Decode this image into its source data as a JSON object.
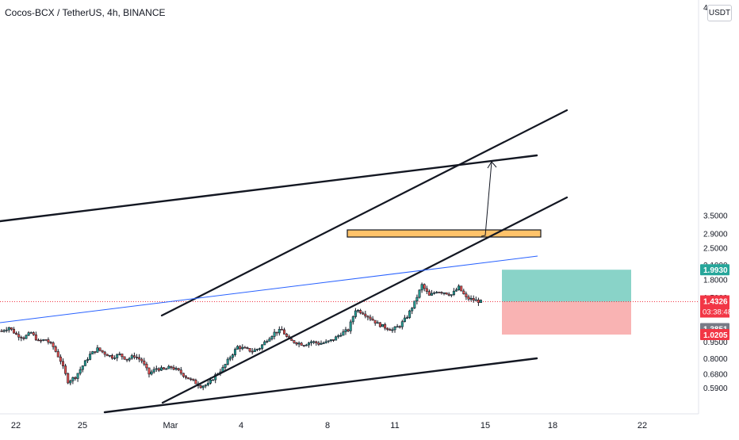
{
  "header": {
    "symbol_line": "Cocos-BCX / TetherUS, 4h, BINANCE",
    "currency": "USDT"
  },
  "price_axis": {
    "top_tick": "4",
    "ticks": [
      "3.5000",
      "2.9000",
      "2.5000",
      "2.1000",
      "1.8000",
      "1.5000",
      "1.1000",
      "0.9500",
      "0.8000",
      "0.6800",
      "0.5900"
    ],
    "target_badge": "1.9930",
    "current_price": "1.4326",
    "countdown": "03:38:48",
    "line_value": "1.3851",
    "stop_badge": "1.0205"
  },
  "time_axis": {
    "ticks": [
      "22",
      "25",
      "Mar",
      "4",
      "8",
      "11",
      "15",
      "18",
      "22"
    ]
  },
  "colors": {
    "bull": "#26a69a",
    "bear": "#ef5350",
    "target_zone": "#89d3c8",
    "stop_zone": "#f9b3b3",
    "support_box": "#ffc36a",
    "blue_line": "#2962ff",
    "price_line": "#f23645",
    "line_badge": "#787b86"
  },
  "chart_data": {
    "type": "candlestick",
    "symbol": "Cocos-BCX / TetherUS",
    "interval": "4h",
    "exchange": "BINANCE",
    "y_scale": "log",
    "ylim": [
      0.56,
      4.0
    ],
    "y_ticks": [
      3.5,
      2.9,
      2.5,
      2.1,
      1.8,
      1.5,
      1.1,
      0.95,
      0.8,
      0.68,
      0.59
    ],
    "x_ticks": [
      "22",
      "25",
      "Mar",
      "4",
      "8",
      "11",
      "15",
      "18",
      "22"
    ],
    "close_path": [
      [
        0,
        1.06
      ],
      [
        3,
        1.1
      ],
      [
        6,
        1.02
      ],
      [
        9,
        0.99
      ],
      [
        12,
        1.04
      ],
      [
        15,
        0.95
      ],
      [
        18,
        0.97
      ],
      [
        21,
        0.9
      ],
      [
        24,
        0.78
      ],
      [
        27,
        0.63
      ],
      [
        30,
        0.66
      ],
      [
        33,
        0.74
      ],
      [
        36,
        0.83
      ],
      [
        39,
        0.88
      ],
      [
        42,
        0.84
      ],
      [
        45,
        0.81
      ],
      [
        48,
        0.83
      ],
      [
        51,
        0.79
      ],
      [
        54,
        0.82
      ],
      [
        57,
        0.78
      ],
      [
        60,
        0.68
      ],
      [
        63,
        0.72
      ],
      [
        66,
        0.71
      ],
      [
        69,
        0.73
      ],
      [
        72,
        0.7
      ],
      [
        75,
        0.66
      ],
      [
        78,
        0.63
      ],
      [
        81,
        0.6
      ],
      [
        84,
        0.61
      ],
      [
        87,
        0.67
      ],
      [
        90,
        0.72
      ],
      [
        93,
        0.81
      ],
      [
        96,
        0.9
      ],
      [
        99,
        0.88
      ],
      [
        102,
        0.86
      ],
      [
        105,
        0.89
      ],
      [
        108,
        0.97
      ],
      [
        111,
        1.04
      ],
      [
        114,
        1.07
      ],
      [
        117,
        0.96
      ],
      [
        120,
        0.94
      ],
      [
        123,
        0.92
      ],
      [
        126,
        0.95
      ],
      [
        129,
        0.93
      ],
      [
        132,
        0.94
      ],
      [
        135,
        0.97
      ],
      [
        138,
        1.03
      ],
      [
        141,
        1.07
      ],
      [
        144,
        1.32
      ],
      [
        147,
        1.28
      ],
      [
        150,
        1.21
      ],
      [
        153,
        1.14
      ],
      [
        156,
        1.1
      ],
      [
        159,
        1.07
      ],
      [
        162,
        1.12
      ],
      [
        165,
        1.23
      ],
      [
        168,
        1.42
      ],
      [
        171,
        1.7
      ],
      [
        174,
        1.52
      ],
      [
        177,
        1.6
      ],
      [
        180,
        1.58
      ],
      [
        183,
        1.54
      ],
      [
        186,
        1.66
      ],
      [
        189,
        1.49
      ],
      [
        192,
        1.46
      ],
      [
        195,
        1.43
      ]
    ],
    "levels": {
      "current_price": 1.4326,
      "target": 1.993,
      "stop": 1.0205,
      "blue_line_right_value": 1.3851
    },
    "drawings": [
      "rising channel (parallel trendlines)",
      "wide ascending channel",
      "horizontal support zone",
      "long position: target 1.9930, stop 1.0205",
      "projection arrow toward target"
    ]
  }
}
